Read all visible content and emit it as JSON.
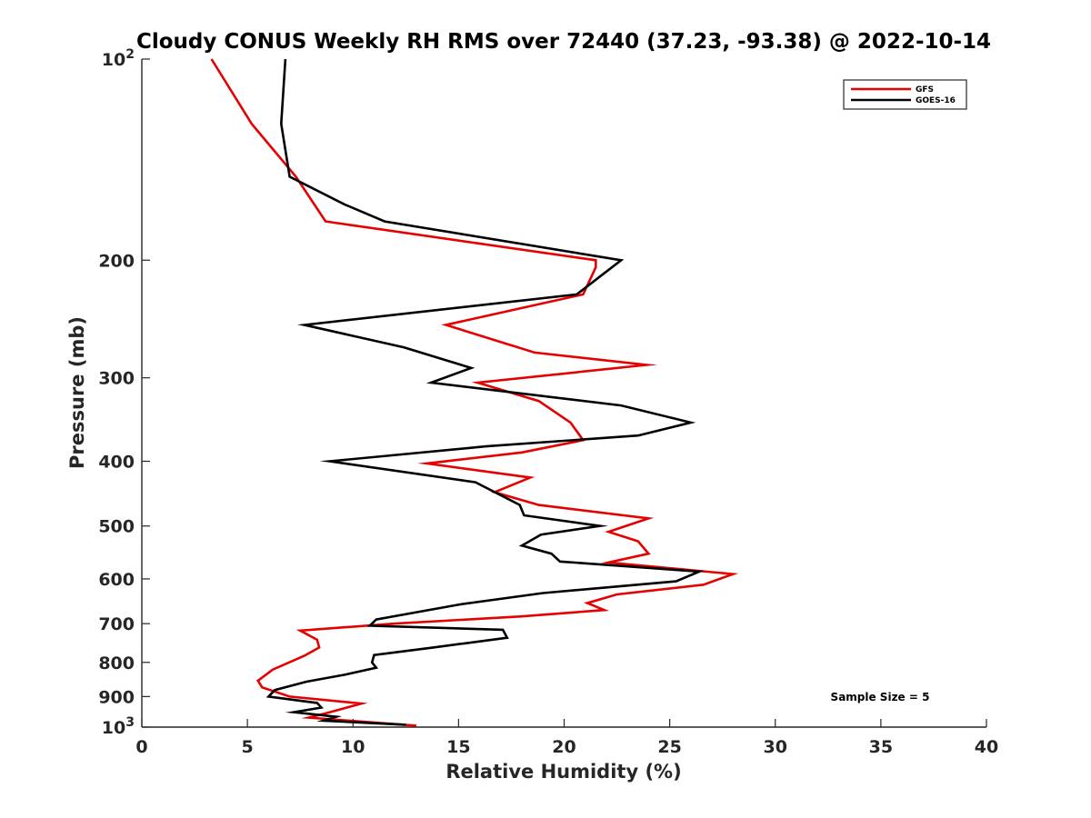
{
  "chart_data": {
    "type": "line",
    "title": "Cloudy CONUS Weekly RH RMS over 72440 (37.23, -93.38) @ 2022-10-14",
    "xlabel": "Relative Humidity (%)",
    "ylabel": "Pressure (mb)",
    "xlim": [
      0,
      40
    ],
    "ylim": [
      100,
      1000
    ],
    "y_scale": "log",
    "y_reversed": true,
    "grid": false,
    "legend_position": "top-right",
    "x_ticks": [
      "0",
      "5",
      "10",
      "15",
      "20",
      "25",
      "30",
      "35",
      "40"
    ],
    "x_tick_values": [
      0,
      5,
      10,
      15,
      20,
      25,
      30,
      35,
      40
    ],
    "y_ticks": [
      {
        "value": 100,
        "label": "10",
        "sup": "2"
      },
      {
        "value": 200,
        "label": "200",
        "sup": ""
      },
      {
        "value": 300,
        "label": "300",
        "sup": ""
      },
      {
        "value": 400,
        "label": "400",
        "sup": ""
      },
      {
        "value": 500,
        "label": "500",
        "sup": ""
      },
      {
        "value": 600,
        "label": "600",
        "sup": ""
      },
      {
        "value": 700,
        "label": "700",
        "sup": ""
      },
      {
        "value": 800,
        "label": "800",
        "sup": ""
      },
      {
        "value": 900,
        "label": "900",
        "sup": ""
      },
      {
        "value": 1000,
        "label": "10",
        "sup": "3"
      }
    ],
    "series": [
      {
        "name": "GFS",
        "color": "#e60000",
        "points": [
          [
            3.3,
            100
          ],
          [
            5.2,
            125
          ],
          [
            7.3,
            150
          ],
          [
            8.7,
            175
          ],
          [
            21.5,
            200
          ],
          [
            21.5,
            205
          ],
          [
            20.9,
            225
          ],
          [
            14.4,
            250
          ],
          [
            18.6,
            275
          ],
          [
            23.9,
            287
          ],
          [
            15.9,
            305
          ],
          [
            18.8,
            325
          ],
          [
            20.3,
            350
          ],
          [
            20.9,
            372
          ],
          [
            18.0,
            388
          ],
          [
            13.5,
            403
          ],
          [
            18.4,
            423
          ],
          [
            16.7,
            445
          ],
          [
            18.8,
            465
          ],
          [
            24.0,
            487
          ],
          [
            22.1,
            510
          ],
          [
            23.5,
            527
          ],
          [
            24.0,
            550
          ],
          [
            22.1,
            567
          ],
          [
            28.0,
            590
          ],
          [
            26.6,
            612
          ],
          [
            22.5,
            633
          ],
          [
            21.1,
            652
          ],
          [
            21.9,
            668
          ],
          [
            17.9,
            683
          ],
          [
            12.0,
            700
          ],
          [
            7.5,
            717
          ],
          [
            8.3,
            740
          ],
          [
            8.4,
            760
          ],
          [
            7.7,
            782
          ],
          [
            6.2,
            820
          ],
          [
            5.5,
            852
          ],
          [
            5.7,
            872
          ],
          [
            7.0,
            900
          ],
          [
            10.4,
            922
          ],
          [
            8.8,
            952
          ],
          [
            7.9,
            968
          ],
          [
            13.0,
            995
          ]
        ]
      },
      {
        "name": "GOES-16",
        "color": "#000000",
        "points": [
          [
            6.8,
            100
          ],
          [
            6.6,
            125
          ],
          [
            7.0,
            150
          ],
          [
            9.6,
            165
          ],
          [
            11.5,
            175
          ],
          [
            22.7,
            200
          ],
          [
            20.6,
            225
          ],
          [
            7.7,
            250
          ],
          [
            12.4,
            270
          ],
          [
            15.6,
            290
          ],
          [
            13.7,
            305
          ],
          [
            22.7,
            330
          ],
          [
            26.0,
            350
          ],
          [
            23.5,
            366
          ],
          [
            16.3,
            380
          ],
          [
            8.9,
            400
          ],
          [
            15.8,
            430
          ],
          [
            17.9,
            465
          ],
          [
            18.1,
            482
          ],
          [
            21.7,
            500
          ],
          [
            18.9,
            515
          ],
          [
            18.0,
            535
          ],
          [
            19.4,
            550
          ],
          [
            19.8,
            565
          ],
          [
            26.4,
            585
          ],
          [
            25.3,
            605
          ],
          [
            19.0,
            630
          ],
          [
            15.1,
            655
          ],
          [
            11.1,
            690
          ],
          [
            10.8,
            705
          ],
          [
            17.1,
            715
          ],
          [
            17.3,
            735
          ],
          [
            13.8,
            760
          ],
          [
            11.0,
            780
          ],
          [
            10.9,
            800
          ],
          [
            11.1,
            815
          ],
          [
            9.6,
            835
          ],
          [
            7.8,
            855
          ],
          [
            6.3,
            880
          ],
          [
            6.0,
            900
          ],
          [
            8.3,
            920
          ],
          [
            8.5,
            935
          ],
          [
            7.2,
            950
          ],
          [
            9.2,
            965
          ],
          [
            8.6,
            978
          ],
          [
            12.5,
            992
          ]
        ]
      }
    ],
    "annotation": "Sample Size = 5"
  }
}
